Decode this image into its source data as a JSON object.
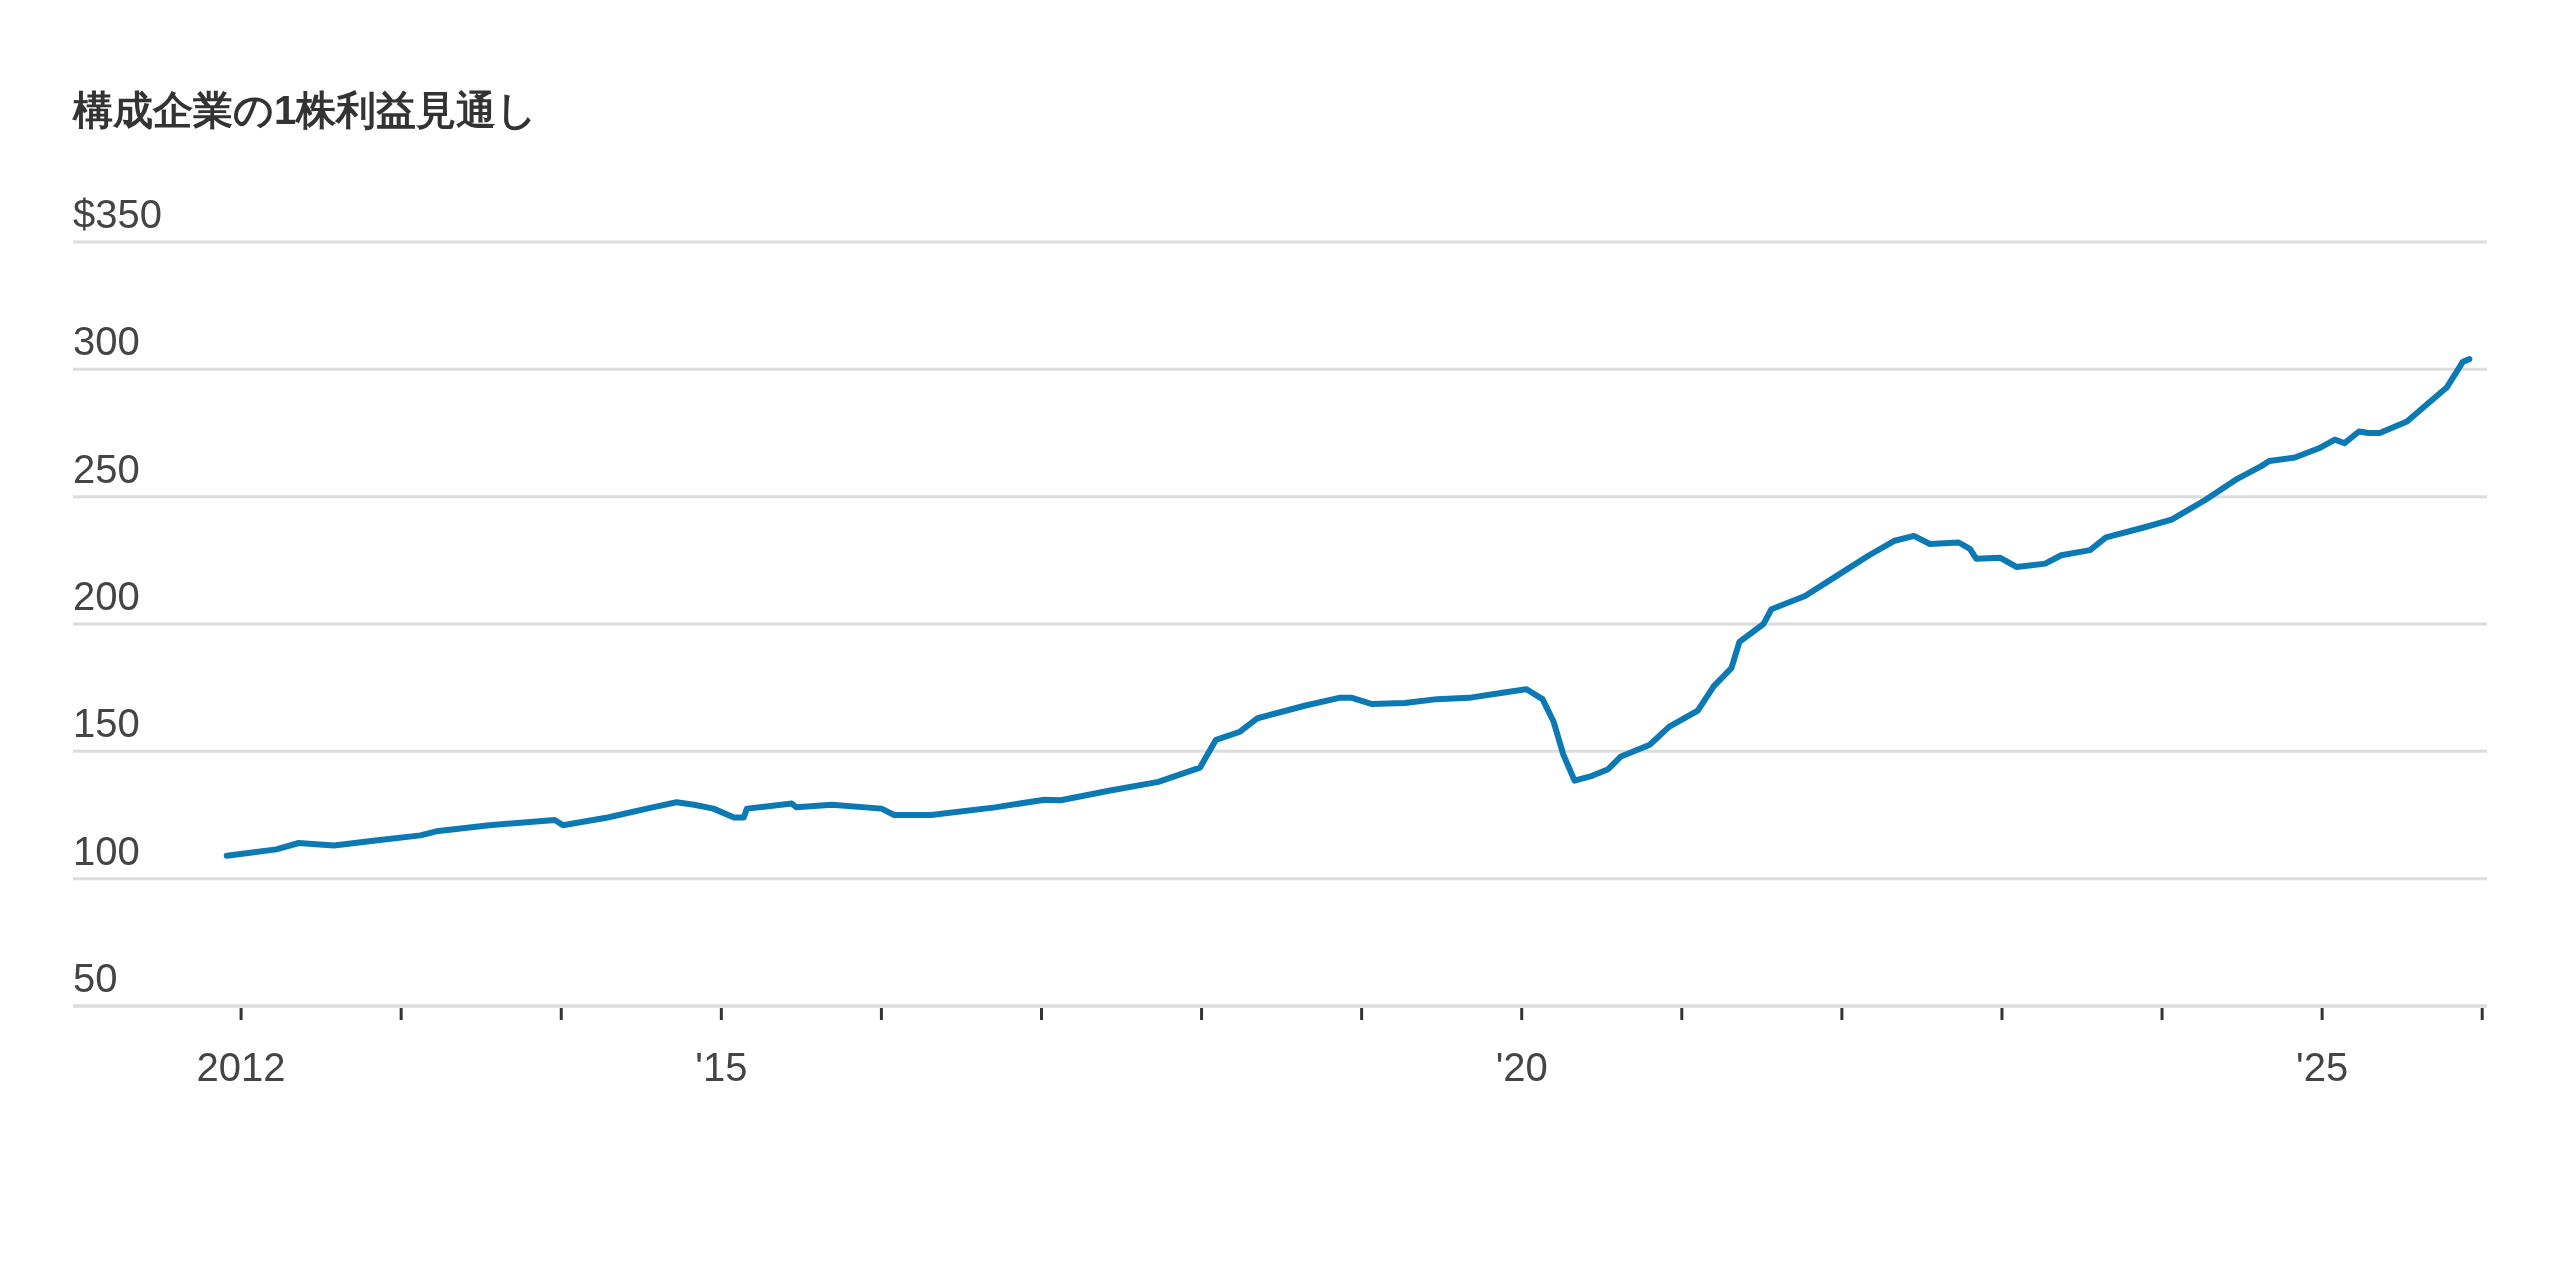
{
  "chart_data": {
    "type": "line",
    "title": "構成企業の1株利益見通し",
    "color": "#0b79b3",
    "grid": "y",
    "xlim": [
      2010.95,
      2026.03
    ],
    "ylim": [
      50,
      350
    ],
    "xticks": [
      {
        "value": 2012,
        "label": "2012"
      },
      {
        "value": 2013,
        "label": null
      },
      {
        "value": 2014,
        "label": null
      },
      {
        "value": 2015,
        "label": "'15"
      },
      {
        "value": 2016,
        "label": null
      },
      {
        "value": 2017,
        "label": null
      },
      {
        "value": 2018,
        "label": null
      },
      {
        "value": 2019,
        "label": null
      },
      {
        "value": 2020,
        "label": "'20"
      },
      {
        "value": 2021,
        "label": null
      },
      {
        "value": 2022,
        "label": null
      },
      {
        "value": 2023,
        "label": null
      },
      {
        "value": 2024,
        "label": null
      },
      {
        "value": 2025,
        "label": "'25"
      },
      {
        "value": 2026,
        "label": null
      }
    ],
    "yticks": [
      50,
      100,
      150,
      200,
      250,
      300,
      {
        "value": 350,
        "label": "$350"
      }
    ],
    "x": [
      2011.91,
      2012.22,
      2012.36,
      2012.58,
      2012.84,
      2013.12,
      2013.22,
      2013.55,
      2013.96,
      2014.01,
      2014.29,
      2014.57,
      2014.72,
      2014.83,
      2014.95,
      2015.08,
      2015.14,
      2015.16,
      2015.44,
      2015.47,
      2015.69,
      2016.0,
      2016.08,
      2016.31,
      2016.71,
      2017.02,
      2017.12,
      2017.43,
      2017.73,
      2017.99,
      2018.09,
      2018.24,
      2018.35,
      2018.65,
      2018.86,
      2018.94,
      2019.06,
      2019.27,
      2019.47,
      2019.67,
      2019.88,
      2020.03,
      2020.13,
      2020.2,
      2020.26,
      2020.33,
      2020.44,
      2020.54,
      2020.62,
      2020.8,
      2020.92,
      2021.1,
      2021.2,
      2021.31,
      2021.36,
      2021.51,
      2021.56,
      2021.77,
      2021.97,
      2022.17,
      2022.33,
      2022.45,
      2022.55,
      2022.73,
      2022.8,
      2022.84,
      2022.99,
      2023.09,
      2023.27,
      2023.37,
      2023.55,
      2023.65,
      2023.88,
      2024.06,
      2024.27,
      2024.47,
      2024.62,
      2024.67,
      2024.83,
      2024.98,
      2025.08,
      2025.14,
      2025.23,
      2025.29,
      2025.36,
      2025.53,
      2025.65,
      2025.78,
      2025.88,
      2025.92
    ],
    "values": [
      109,
      111.5,
      114,
      113,
      115,
      117,
      118.6,
      121,
      123,
      121,
      124,
      128,
      130,
      129,
      127.5,
      124,
      124,
      127.5,
      129.5,
      128,
      129,
      127.5,
      125,
      125,
      128,
      131,
      130.8,
      134.6,
      138,
      143.6,
      154.5,
      157.7,
      163,
      168,
      171,
      171,
      168.6,
      169,
      170.5,
      171,
      173,
      174.4,
      170.5,
      161.5,
      148.7,
      138.5,
      140.4,
      143,
      148,
      152.6,
      159.6,
      166,
      175.6,
      182.7,
      193,
      200,
      205.8,
      211,
      219,
      227,
      232.7,
      234.6,
      231.4,
      232,
      229.5,
      225.6,
      226,
      222.4,
      223.7,
      227,
      229,
      234,
      237.8,
      241,
      248.7,
      257,
      262,
      264,
      265.4,
      269,
      272.4,
      271,
      275.6,
      275,
      275,
      279.5,
      286,
      293,
      303,
      304
    ]
  }
}
